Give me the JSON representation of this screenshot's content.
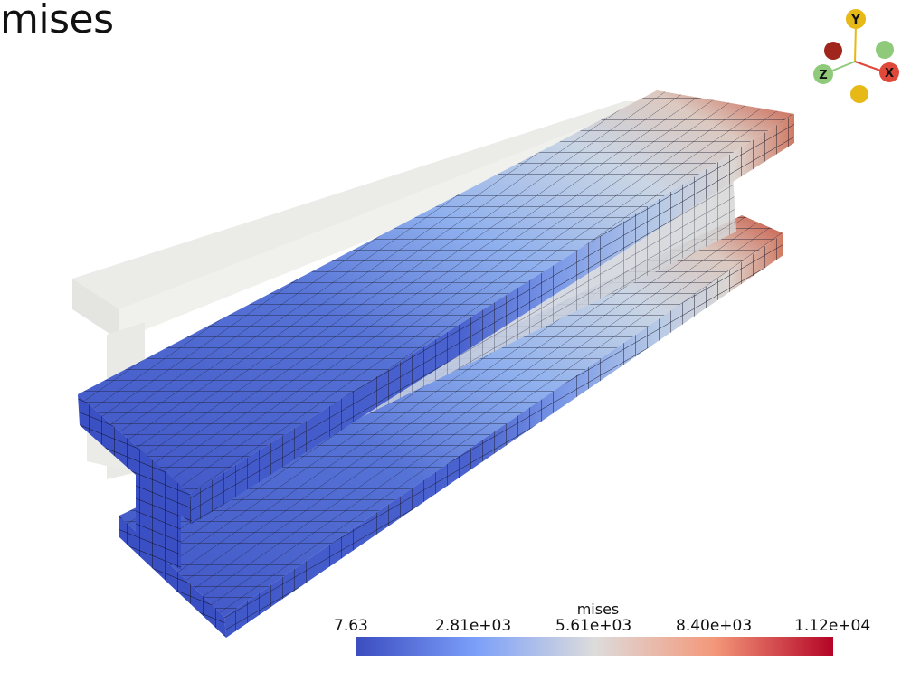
{
  "view_title": "mises",
  "colorbar": {
    "title": "mises",
    "labels": [
      "7.63",
      "2.81e+03",
      "5.61e+03",
      "8.40e+03",
      "1.12e+04"
    ],
    "colors": [
      "#3b4cc0",
      "#aac7fd",
      "#dddcdc",
      "#f7ac8e",
      "#b40426"
    ]
  },
  "axes": {
    "x_label": "X",
    "y_label": "Y",
    "z_label": "Z",
    "x_color": "#e0483a",
    "y_color": "#e6b917",
    "z_color": "#8fc97a",
    "neg_x_color": "#a0261d"
  }
}
